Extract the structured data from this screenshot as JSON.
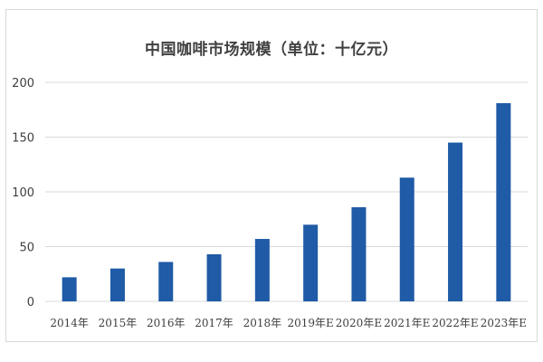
{
  "chart_data": {
    "type": "bar",
    "title": "中国咖啡市场规模（单位：十亿元）",
    "xlabel": "",
    "ylabel": "",
    "categories": [
      "2014年",
      "2015年",
      "2016年",
      "2017年",
      "2018年",
      "2019年E",
      "2020年E",
      "2021年E",
      "2022年E",
      "2023年E"
    ],
    "values": [
      22,
      30,
      36,
      43,
      57,
      70,
      86,
      113,
      145,
      181
    ],
    "ylim": [
      0,
      200
    ],
    "yticks": [
      0,
      50,
      100,
      150,
      200
    ],
    "grid": true,
    "legend": "none",
    "bar_color": "#1f5ba6",
    "grid_color": "#d9d9d9"
  }
}
